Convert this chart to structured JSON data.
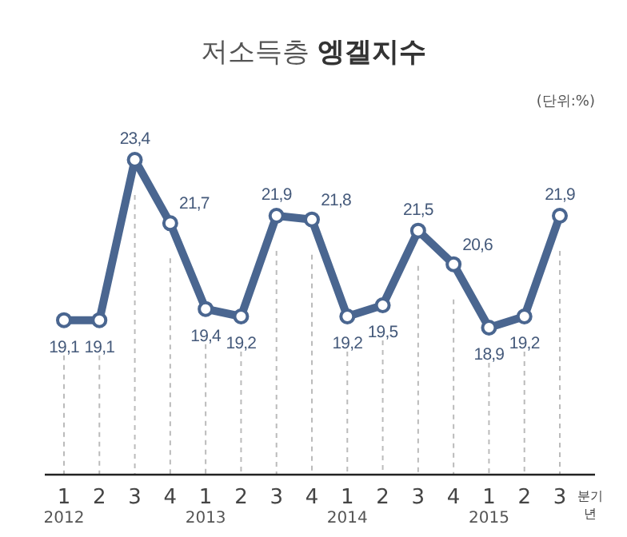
{
  "chart_data": {
    "type": "line",
    "title": "저소득층 엥겔지수",
    "xlabel": "분기",
    "categories": [
      "1",
      "2",
      "3",
      "4",
      "1",
      "2",
      "3",
      "4",
      "1",
      "2",
      "3",
      "4",
      "1",
      "2",
      "3"
    ],
    "series": [
      {
        "color": "#4a6690",
        "values": [
          19.1,
          19.1,
          23.4,
          21.7,
          19.4,
          19.2,
          21.9,
          21.8,
          19.2,
          19.5,
          21.5,
          20.6,
          18.9,
          19.2,
          21.9
        ],
        "value_labels": [
          "19,1",
          "19,1",
          "23,4",
          "21,7",
          "19,4",
          "19,2",
          "21,9",
          "21,8",
          "19,2",
          "19,5",
          "21,5",
          "20,6",
          "18,9",
          "19,2",
          "21,9"
        ]
      }
    ],
    "marker": "circle",
    "line_style": "solid",
    "grid": "x",
    "annotations": [
      "(단위:%)",
      "2012",
      "2013",
      "2014",
      "2015",
      "년"
    ]
  }
}
